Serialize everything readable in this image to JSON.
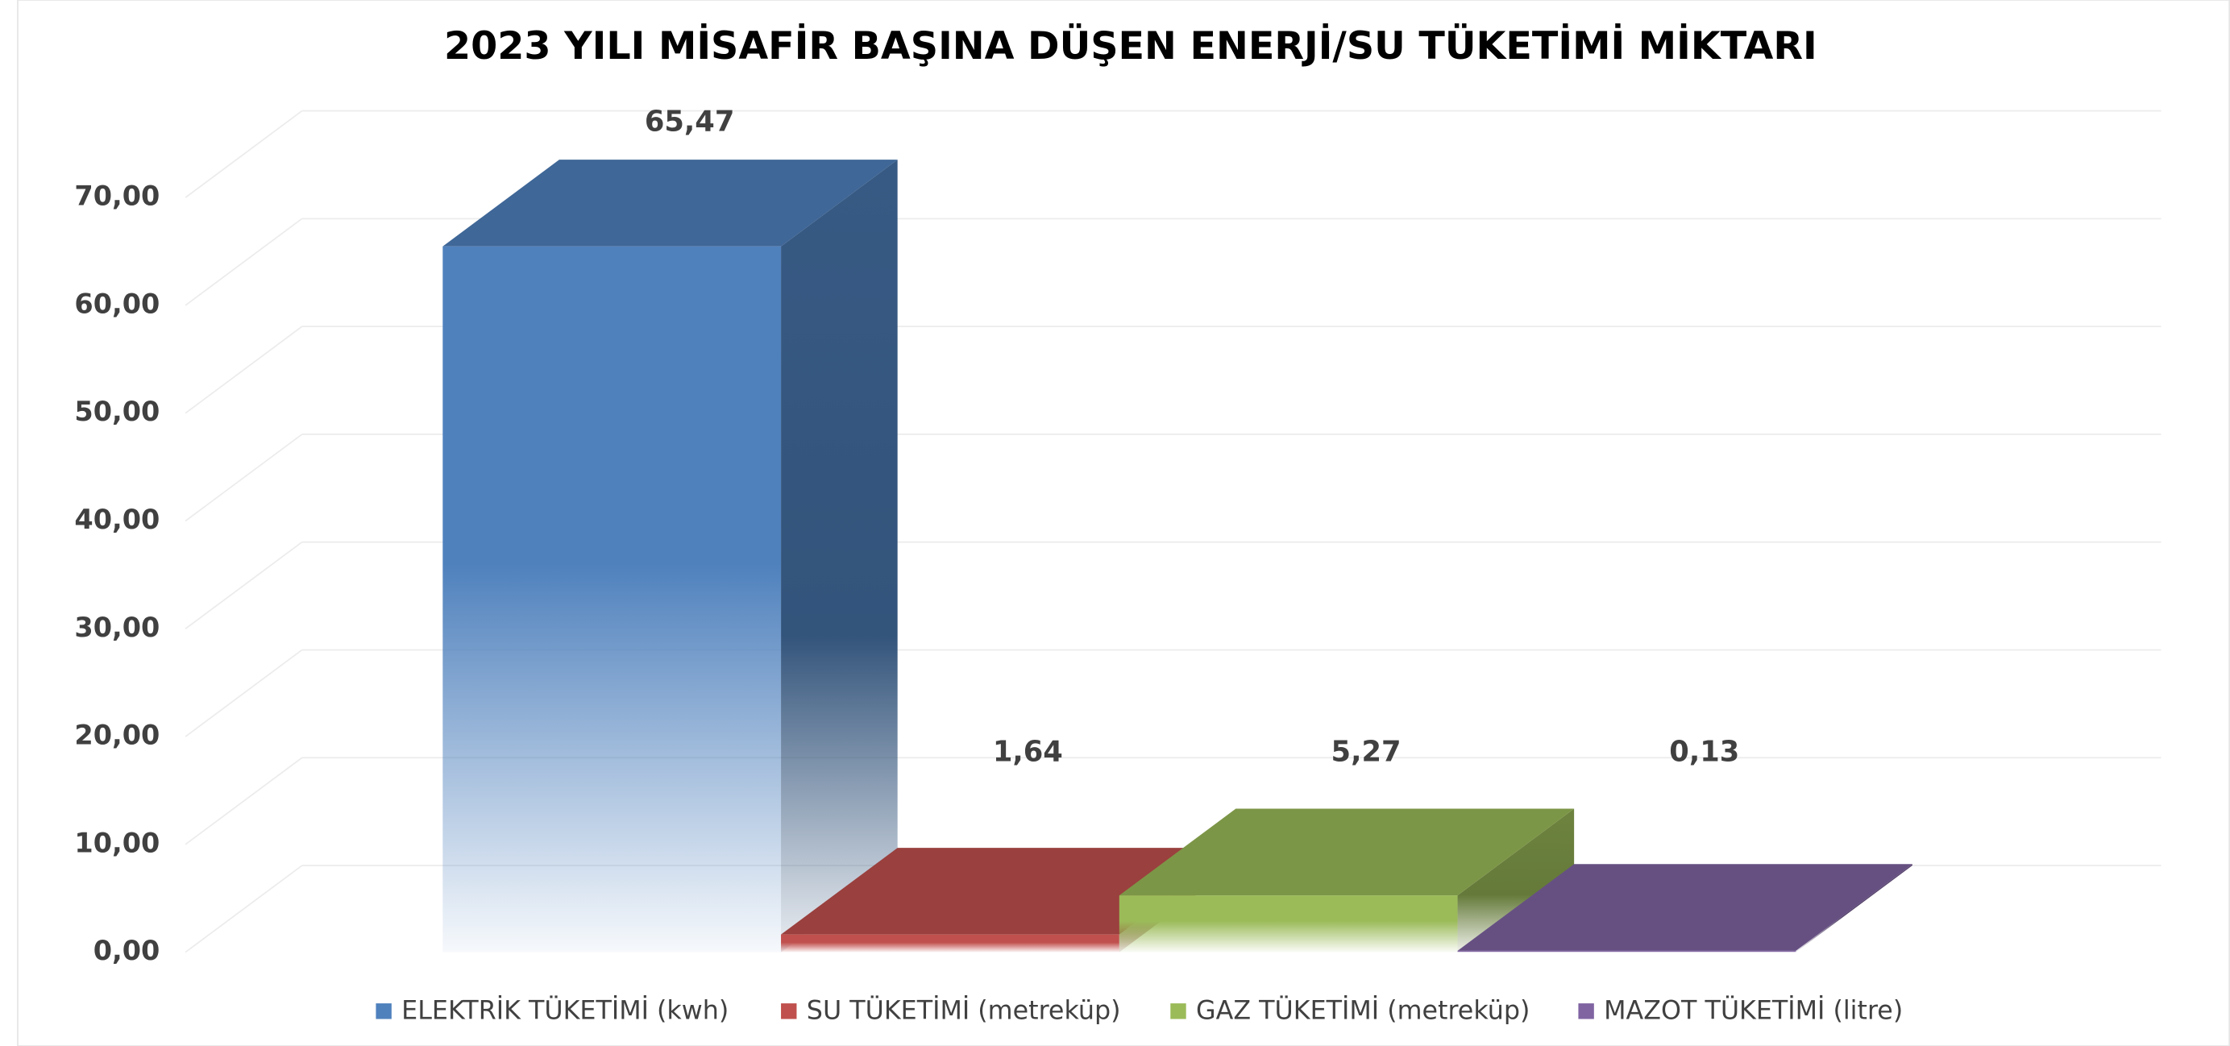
{
  "chart_data": {
    "type": "bar3d",
    "title": "2023 YILI MİSAFİR BAŞINA DÜŞEN ENERJİ/SU TÜKETİMİ MİKTARI",
    "ylim": [
      0,
      70
    ],
    "yticks": [
      {
        "value": 0,
        "label": "0,00"
      },
      {
        "value": 10,
        "label": "10,00"
      },
      {
        "value": 20,
        "label": "20,00"
      },
      {
        "value": 30,
        "label": "30,00"
      },
      {
        "value": 40,
        "label": "40,00"
      },
      {
        "value": 50,
        "label": "50,00"
      },
      {
        "value": 60,
        "label": "60,00"
      },
      {
        "value": 70,
        "label": "70,00"
      }
    ],
    "grid": true,
    "legend": "bottom",
    "series": [
      {
        "name": "ELEKTRİK TÜKETİMİ (kwh)",
        "color": "#4f81bd",
        "values": [
          65.47
        ],
        "value_labels": [
          "65,47"
        ]
      },
      {
        "name": "SU TÜKETİMİ (metreküp)",
        "color": "#c0504d",
        "values": [
          1.64
        ],
        "value_labels": [
          "1,64"
        ]
      },
      {
        "name": "GAZ TÜKETİMİ (metreküp)",
        "color": "#9bbb59",
        "values": [
          5.27
        ],
        "value_labels": [
          "5,27"
        ]
      },
      {
        "name": "MAZOT TÜKETİMİ (litre)",
        "color": "#8064a2",
        "values": [
          0.13
        ],
        "value_labels": [
          "0,13"
        ]
      }
    ]
  }
}
